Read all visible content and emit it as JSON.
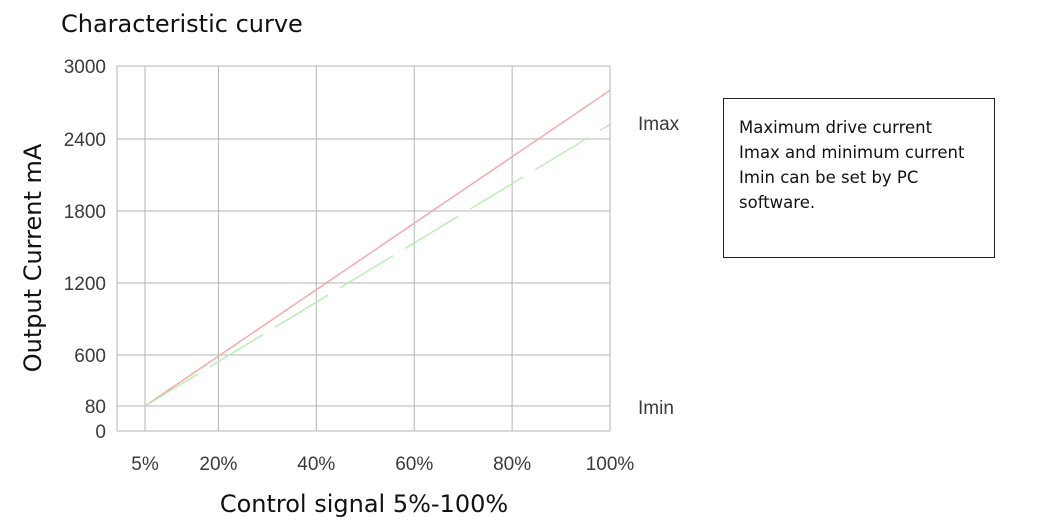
{
  "chart_data": {
    "type": "line",
    "title": "Characteristic curve",
    "xlabel": "Control signal 5%-100%",
    "ylabel": "Output Current mA",
    "x_ticks": [
      5,
      20,
      40,
      60,
      80,
      100
    ],
    "x_tick_labels": [
      "5%",
      "20%",
      "40%",
      "60%",
      "80%",
      "100%"
    ],
    "y_ticks": [
      0,
      80,
      600,
      1200,
      1800,
      2400,
      3000
    ],
    "y_tick_labels": [
      "0",
      "80",
      "600",
      "1200",
      "1800",
      "2400",
      "3000"
    ],
    "xlim": [
      0,
      100
    ],
    "ylim": [
      0,
      3000
    ],
    "grid": true,
    "series": [
      {
        "x": [
          5,
          100
        ],
        "y": [
          80,
          2800
        ],
        "color": "#f4a6a6",
        "dash": "solid"
      },
      {
        "x": [
          5,
          100
        ],
        "y": [
          80,
          2520
        ],
        "color": "#b8ecb0",
        "dash": "dashed"
      }
    ],
    "annotations": [
      {
        "text": "Imax",
        "y": 2400
      },
      {
        "text": "Imin",
        "y": 80
      }
    ]
  },
  "note": {
    "text": "Maximum drive current\nImax and minimum current\nImin can be set by PC\nsoftware."
  }
}
